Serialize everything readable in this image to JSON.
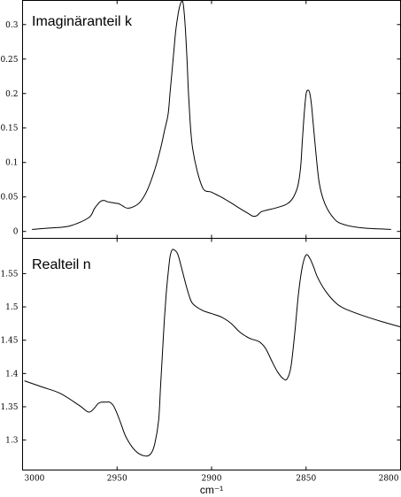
{
  "chart_data": [
    {
      "type": "line",
      "title": "Imaginäranteil k",
      "xlabel": "",
      "ylabel": "",
      "xlim": [
        3000,
        2800
      ],
      "ylim": [
        -0.01,
        0.335
      ],
      "yticks": [
        0,
        0.05,
        0.1,
        0.15,
        0.2,
        0.25,
        0.3
      ],
      "ytick_labels": [
        "0",
        "0.05",
        "0.1",
        "0.15",
        "0.2",
        "0.25",
        "0.3"
      ],
      "series": [
        {
          "x": [
            2995,
            2985,
            2975,
            2965,
            2962,
            2959,
            2957,
            2955,
            2953,
            2951,
            2949,
            2947,
            2945,
            2942,
            2938,
            2934,
            2930,
            2927,
            2925,
            2923,
            2922,
            2921,
            2920,
            2919,
            2918,
            2917,
            2916,
            2915,
            2914,
            2913,
            2912,
            2910,
            2905,
            2900,
            2895,
            2890,
            2886,
            2883,
            2880,
            2878,
            2876,
            2874,
            2872,
            2860,
            2855,
            2853,
            2852,
            2851,
            2850,
            2849,
            2848,
            2847,
            2845,
            2843,
            2840,
            2835,
            2830,
            2820,
            2805
          ],
          "y": [
            0.003,
            0.005,
            0.008,
            0.02,
            0.033,
            0.043,
            0.045,
            0.043,
            0.042,
            0.041,
            0.04,
            0.037,
            0.034,
            0.035,
            0.042,
            0.06,
            0.09,
            0.12,
            0.145,
            0.17,
            0.2,
            0.23,
            0.26,
            0.29,
            0.31,
            0.325,
            0.333,
            0.33,
            0.3,
            0.25,
            0.19,
            0.12,
            0.065,
            0.057,
            0.05,
            0.042,
            0.035,
            0.03,
            0.025,
            0.022,
            0.023,
            0.028,
            0.03,
            0.04,
            0.06,
            0.09,
            0.13,
            0.17,
            0.199,
            0.205,
            0.2,
            0.18,
            0.12,
            0.07,
            0.04,
            0.018,
            0.01,
            0.005,
            0.003
          ]
        }
      ]
    },
    {
      "type": "line",
      "title": "Realteil n",
      "xlabel": "cm⁻¹",
      "ylabel": "",
      "xlim": [
        3000,
        2800
      ],
      "ylim": [
        1.255,
        1.603
      ],
      "xticks": [
        3000,
        2950,
        2900,
        2850,
        2800
      ],
      "xtick_labels": [
        "3000",
        "2950",
        "2900",
        "2850",
        "2800"
      ],
      "yticks": [
        1.3,
        1.35,
        1.4,
        1.45,
        1.5,
        1.55
      ],
      "ytick_labels": [
        "1.3",
        "1.35",
        "1.4",
        "1.45",
        "1.5",
        "1.55"
      ],
      "series": [
        {
          "x": [
            2999,
            2990,
            2980,
            2970,
            2965,
            2962,
            2960,
            2958,
            2956,
            2954,
            2952,
            2950,
            2948,
            2945,
            2940,
            2935,
            2932,
            2930,
            2928,
            2927,
            2926,
            2925,
            2924,
            2923,
            2922,
            2921,
            2920,
            2918,
            2916,
            2914,
            2912,
            2910,
            2905,
            2900,
            2895,
            2890,
            2885,
            2880,
            2875,
            2872,
            2870,
            2868,
            2865,
            2862,
            2860,
            2858,
            2856,
            2854,
            2852,
            2850,
            2848,
            2846,
            2844,
            2840,
            2835,
            2830,
            2820,
            2810,
            2800
          ],
          "y": [
            1.389,
            1.38,
            1.37,
            1.352,
            1.342,
            1.348,
            1.355,
            1.357,
            1.357,
            1.357,
            1.352,
            1.34,
            1.325,
            1.303,
            1.283,
            1.276,
            1.28,
            1.295,
            1.33,
            1.38,
            1.43,
            1.48,
            1.52,
            1.55,
            1.575,
            1.585,
            1.586,
            1.58,
            1.56,
            1.538,
            1.518,
            1.505,
            1.495,
            1.49,
            1.485,
            1.476,
            1.462,
            1.453,
            1.448,
            1.44,
            1.43,
            1.418,
            1.402,
            1.392,
            1.392,
            1.41,
            1.46,
            1.52,
            1.56,
            1.578,
            1.573,
            1.56,
            1.545,
            1.525,
            1.508,
            1.498,
            1.487,
            1.478,
            1.47
          ]
        }
      ]
    }
  ]
}
